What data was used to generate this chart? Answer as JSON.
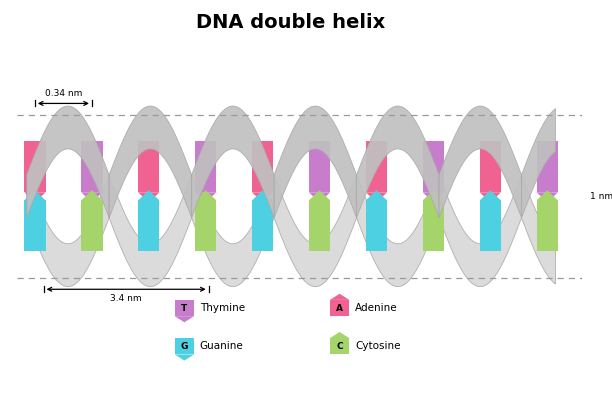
{
  "title": "DNA double helix",
  "title_fontsize": 14,
  "title_fontweight": "bold",
  "background_color": "#ffffff",
  "colors": {
    "T": "#c77dcc",
    "A": "#f06292",
    "G": "#4dd0e1",
    "C": "#a5d46a"
  },
  "legend_items": [
    {
      "label": "T",
      "name": "Thymine",
      "color": "#c77dcc",
      "arrow_up": false
    },
    {
      "label": "A",
      "name": "Adenine",
      "color": "#f06292",
      "arrow_up": true
    },
    {
      "label": "G",
      "name": "Guanine",
      "color": "#4dd0e1",
      "arrow_up": false
    },
    {
      "label": "C",
      "name": "Cytosine",
      "color": "#a5d46a",
      "arrow_up": true
    }
  ],
  "base_pair_sequence": [
    [
      "A",
      "G"
    ],
    [
      "T",
      "C"
    ],
    [
      "A",
      "G"
    ],
    [
      "T",
      "C"
    ],
    [
      "A",
      "G"
    ],
    [
      "T",
      "C"
    ],
    [
      "A",
      "G"
    ],
    [
      "T",
      "C"
    ],
    [
      "A",
      "G"
    ],
    [
      "T",
      "C"
    ]
  ],
  "strand_color_front": "#c0c0c0",
  "strand_color_back": "#d8d8d8",
  "strand_edge_color": "#aaaaaa",
  "dashed_color": "#999999",
  "dim_label": "0.34 nm",
  "width_label": "3.4 nm",
  "height_label": "1 nm"
}
